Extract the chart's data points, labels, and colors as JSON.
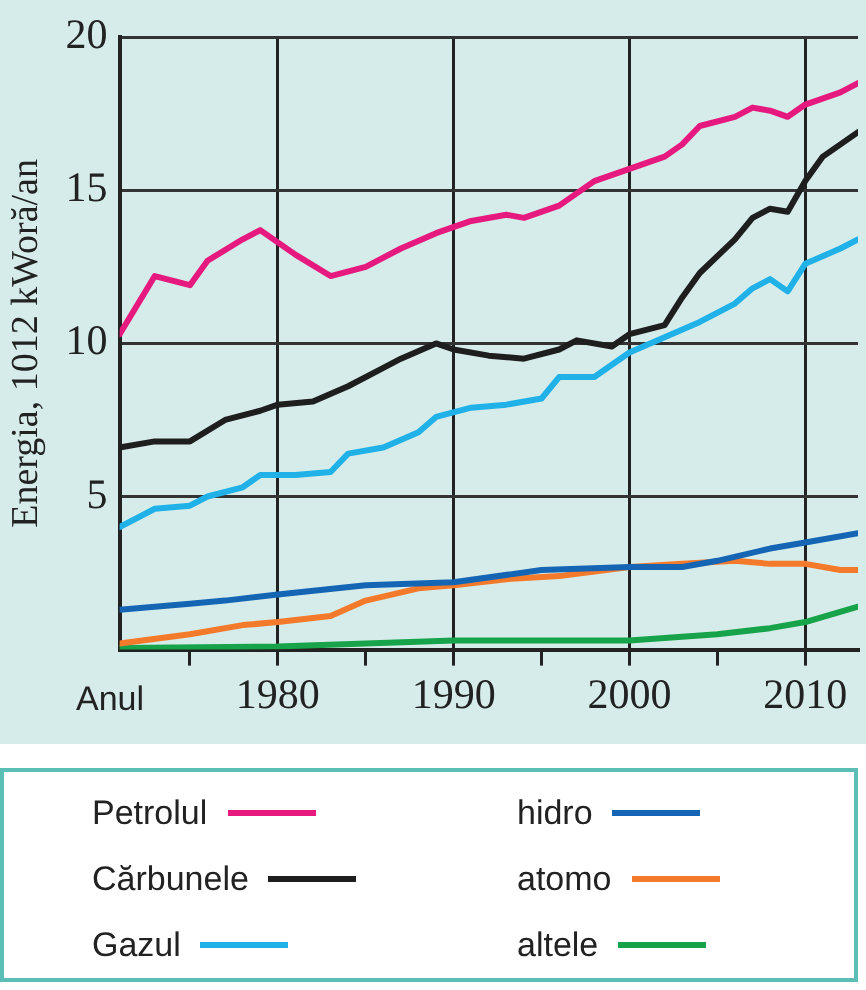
{
  "chart_data": {
    "type": "line",
    "xlabel": "Anul",
    "ylabel": "Energia, 1012 kWoră/an",
    "xlim": [
      1971,
      2013
    ],
    "ylim": [
      0,
      20
    ],
    "xticks": [
      {
        "value": 1975,
        "label": null
      },
      1980,
      {
        "value": 1985,
        "label": null
      },
      1990,
      {
        "value": 1995,
        "label": null
      },
      2000,
      {
        "value": 2005,
        "label": null
      },
      2010
    ],
    "yticks": [
      5,
      10,
      15,
      20
    ],
    "grid": true,
    "legend": "bottom",
    "marker": "none",
    "line_style": "solid",
    "series": [
      {
        "name": "Petrolul",
        "color": "#e6197f",
        "x": [
          1971,
          1973,
          1975,
          1976,
          1978,
          1979,
          1981,
          1983,
          1985,
          1987,
          1989,
          1991,
          1993,
          1994,
          1996,
          1998,
          2000,
          2002,
          2003,
          2004,
          2006,
          2007,
          2008,
          2009,
          2010,
          2012,
          2013
        ],
        "values": [
          10.3,
          12.2,
          11.9,
          12.7,
          13.4,
          13.7,
          12.9,
          12.2,
          12.5,
          13.1,
          13.6,
          14.0,
          14.2,
          14.1,
          14.5,
          15.3,
          15.7,
          16.1,
          16.5,
          17.1,
          17.4,
          17.7,
          17.6,
          17.4,
          17.8,
          18.2,
          18.5
        ]
      },
      {
        "name": "Cărbunele",
        "color": "#1e1e1e",
        "x": [
          1971,
          1973,
          1975,
          1977,
          1979,
          1980,
          1982,
          1984,
          1986,
          1987,
          1989,
          1990,
          1992,
          1994,
          1996,
          1997,
          1999,
          2000,
          2002,
          2003,
          2004,
          2006,
          2007,
          2008,
          2009,
          2010,
          2011,
          2013
        ],
        "values": [
          6.6,
          6.8,
          6.8,
          7.5,
          7.8,
          8.0,
          8.1,
          8.6,
          9.2,
          9.5,
          10.0,
          9.8,
          9.6,
          9.5,
          9.8,
          10.1,
          9.9,
          10.3,
          10.6,
          11.5,
          12.3,
          13.4,
          14.1,
          14.4,
          14.3,
          15.3,
          16.1,
          16.9
        ]
      },
      {
        "name": "Gazul",
        "color": "#1fb1e8",
        "x": [
          1971,
          1973,
          1975,
          1976,
          1978,
          1979,
          1981,
          1983,
          1984,
          1986,
          1988,
          1989,
          1991,
          1993,
          1995,
          1996,
          1998,
          1999,
          2000,
          2002,
          2004,
          2006,
          2007,
          2008,
          2009,
          2010,
          2012,
          2013
        ],
        "values": [
          4.0,
          4.6,
          4.7,
          5.0,
          5.3,
          5.7,
          5.7,
          5.8,
          6.4,
          6.6,
          7.1,
          7.6,
          7.9,
          8.0,
          8.2,
          8.9,
          8.9,
          9.3,
          9.7,
          10.2,
          10.7,
          11.3,
          11.8,
          12.1,
          11.7,
          12.6,
          13.1,
          13.4
        ]
      },
      {
        "name": "hidro",
        "color": "#1565b5",
        "x": [
          1971,
          1975,
          1977,
          1980,
          1985,
          1990,
          1995,
          2000,
          2003,
          2005,
          2008,
          2010,
          2013
        ],
        "values": [
          1.3,
          1.5,
          1.6,
          1.8,
          2.1,
          2.2,
          2.6,
          2.7,
          2.7,
          2.9,
          3.3,
          3.5,
          3.8
        ]
      },
      {
        "name": "atomo",
        "color": "#f47a2b",
        "x": [
          1971,
          1975,
          1978,
          1980,
          1983,
          1985,
          1988,
          1990,
          1993,
          1996,
          2000,
          2003,
          2006,
          2008,
          2010,
          2012,
          2013
        ],
        "values": [
          0.2,
          0.5,
          0.8,
          0.9,
          1.1,
          1.6,
          2.0,
          2.1,
          2.3,
          2.4,
          2.7,
          2.8,
          2.9,
          2.8,
          2.8,
          2.6,
          2.6
        ]
      },
      {
        "name": "altele",
        "color": "#16a34a",
        "x": [
          1971,
          1980,
          1990,
          2000,
          2005,
          2008,
          2010,
          2013
        ],
        "values": [
          0.05,
          0.1,
          0.3,
          0.3,
          0.5,
          0.7,
          0.9,
          1.4
        ]
      }
    ]
  }
}
